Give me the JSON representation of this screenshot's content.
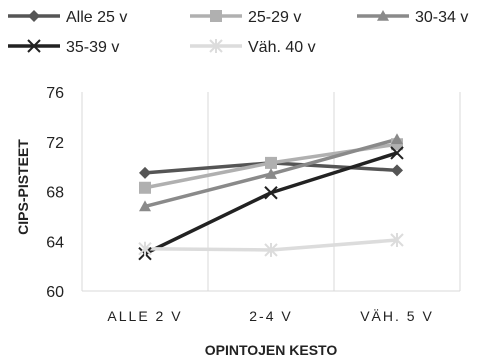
{
  "chart_data": {
    "type": "line",
    "categories": [
      "ALLE 2 V",
      "2-4 V",
      "VÄH. 5 V"
    ],
    "xlabel": "OPINTOJEN KESTO",
    "ylabel": "CIPS-PISTEET",
    "ylim": [
      60,
      76
    ],
    "yticks": [
      60,
      64,
      68,
      72,
      76
    ],
    "grid": "vertical",
    "legend": "top",
    "series": [
      {
        "name": "Alle 25 v",
        "values": [
          69.5,
          70.3,
          69.7
        ],
        "color": "#555555",
        "marker": "diamond"
      },
      {
        "name": "25-29 v",
        "values": [
          68.3,
          70.3,
          71.8
        ],
        "color": "#b0b0b0",
        "marker": "square"
      },
      {
        "name": "30-34 v",
        "values": [
          66.8,
          69.4,
          72.2
        ],
        "color": "#8a8a8a",
        "marker": "triangle"
      },
      {
        "name": "35-39 v",
        "values": [
          63.0,
          67.9,
          71.1
        ],
        "color": "#222222",
        "marker": "x"
      },
      {
        "name": "Väh. 40 v",
        "values": [
          63.4,
          63.3,
          64.1
        ],
        "color": "#dcdcdc",
        "marker": "star"
      }
    ]
  }
}
